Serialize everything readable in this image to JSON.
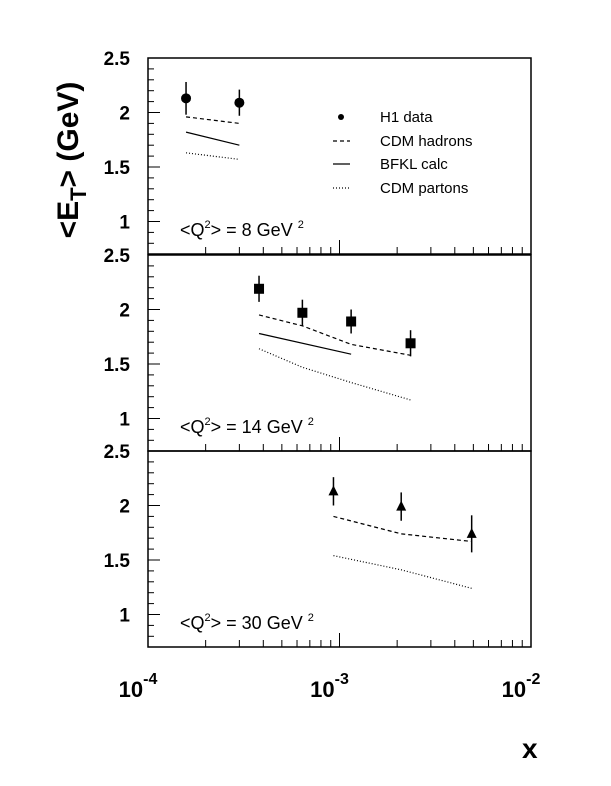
{
  "chart_data": {
    "type": "scatter",
    "title": "",
    "xlabel": "x",
    "ylabel": "<E_T> (GeV)",
    "ylabel_parts": {
      "open": "<E",
      "sub": "T",
      "close": "> (GeV)"
    },
    "xscale": "log",
    "xlim": [
      0.0001,
      0.01
    ],
    "ylim": [
      0.7,
      2.5
    ],
    "x_ticks": [
      {
        "base": "10",
        "exp": "-4"
      },
      {
        "base": "10",
        "exp": "-3"
      },
      {
        "base": "10",
        "exp": "-2"
      }
    ],
    "y_ticks": [
      "2.5",
      "2",
      "1.5",
      "1"
    ],
    "legend": {
      "placement": "top-right of top panel",
      "entries": [
        {
          "label": "H1 data",
          "style": "marker"
        },
        {
          "label": "CDM hadrons",
          "style": "dashed"
        },
        {
          "label": "BFKL calc",
          "style": "solid"
        },
        {
          "label": "CDM partons",
          "style": "dotted"
        }
      ]
    },
    "panels": [
      {
        "label": "<Q",
        "label_sup": "2",
        "label_rest": "> = 8 GeV",
        "label_sup2": "2",
        "marker": "circle",
        "h1_data": {
          "x": [
            0.000158,
            0.0003
          ],
          "y": [
            2.13,
            2.09
          ],
          "err": [
            0.15,
            0.12
          ]
        },
        "cdm_hadrons": {
          "x": [
            0.000158,
            0.0003
          ],
          "y": [
            1.96,
            1.9
          ]
        },
        "bfkl": {
          "x": [
            0.000158,
            0.0003
          ],
          "y": [
            1.82,
            1.7
          ]
        },
        "cdm_partons": {
          "x": [
            0.000158,
            0.0003
          ],
          "y": [
            1.63,
            1.57
          ]
        }
      },
      {
        "label": "<Q",
        "label_sup": "2",
        "label_rest": "> = 14 GeV",
        "label_sup2": "2",
        "marker": "square",
        "h1_data": {
          "x": [
            0.00038,
            0.00064,
            0.00115,
            0.00235
          ],
          "y": [
            2.19,
            1.97,
            1.89,
            1.69
          ],
          "err": [
            0.12,
            0.12,
            0.11,
            0.12
          ]
        },
        "cdm_hadrons": {
          "x": [
            0.00038,
            0.00064,
            0.00115,
            0.00235
          ],
          "y": [
            1.95,
            1.85,
            1.68,
            1.58
          ]
        },
        "bfkl": {
          "x": [
            0.00038,
            0.00115
          ],
          "y": [
            1.78,
            1.59
          ]
        },
        "cdm_partons": {
          "x": [
            0.00038,
            0.00064,
            0.00115,
            0.00235
          ],
          "y": [
            1.64,
            1.47,
            1.33,
            1.17
          ]
        }
      },
      {
        "label": "<Q",
        "label_sup": "2",
        "label_rest": "> = 30 GeV",
        "label_sup2": "2",
        "marker": "triangle",
        "h1_data": {
          "x": [
            0.00093,
            0.0021,
            0.0049
          ],
          "y": [
            2.13,
            1.99,
            1.74
          ],
          "err": [
            0.13,
            0.13,
            0.17
          ]
        },
        "cdm_hadrons": {
          "x": [
            0.00093,
            0.0021,
            0.0049
          ],
          "y": [
            1.9,
            1.74,
            1.67
          ]
        },
        "bfkl": {
          "x": [],
          "y": []
        },
        "cdm_partons": {
          "x": [
            0.00093,
            0.0021,
            0.0049
          ],
          "y": [
            1.54,
            1.41,
            1.24
          ]
        }
      }
    ]
  }
}
